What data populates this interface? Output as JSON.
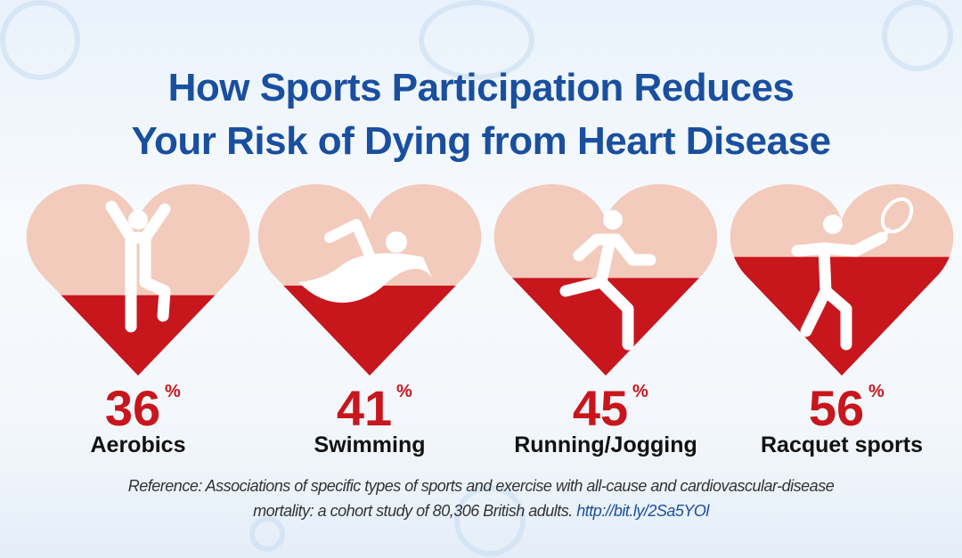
{
  "title_line1": "How Sports Participation Reduces",
  "title_line2": "Your Risk of Dying from Heart Disease",
  "chart_data": {
    "type": "bar",
    "categories": [
      "Aerobics",
      "Swimming",
      "Running/Jogging",
      "Racquet sports"
    ],
    "values": [
      36,
      41,
      45,
      56
    ],
    "value_labels": [
      "36",
      "41",
      "45",
      "56"
    ],
    "unit": "%",
    "icons": [
      "aerobics-figure-icon",
      "swimmer-icon",
      "runner-icon",
      "tennis-player-icon"
    ],
    "colors": {
      "fill": "#c8161d",
      "empty": "#f2cbbd",
      "number": "#c8161d",
      "title": "#1a4f9f"
    }
  },
  "reference": {
    "text_line1": "Reference: Associations of specific types of sports and exercise with all-cause and cardiovascular-disease",
    "text_line2": "mortality: a cohort study of 80,306 British adults.",
    "link": "http://bit.ly/2Sa5YOl"
  }
}
